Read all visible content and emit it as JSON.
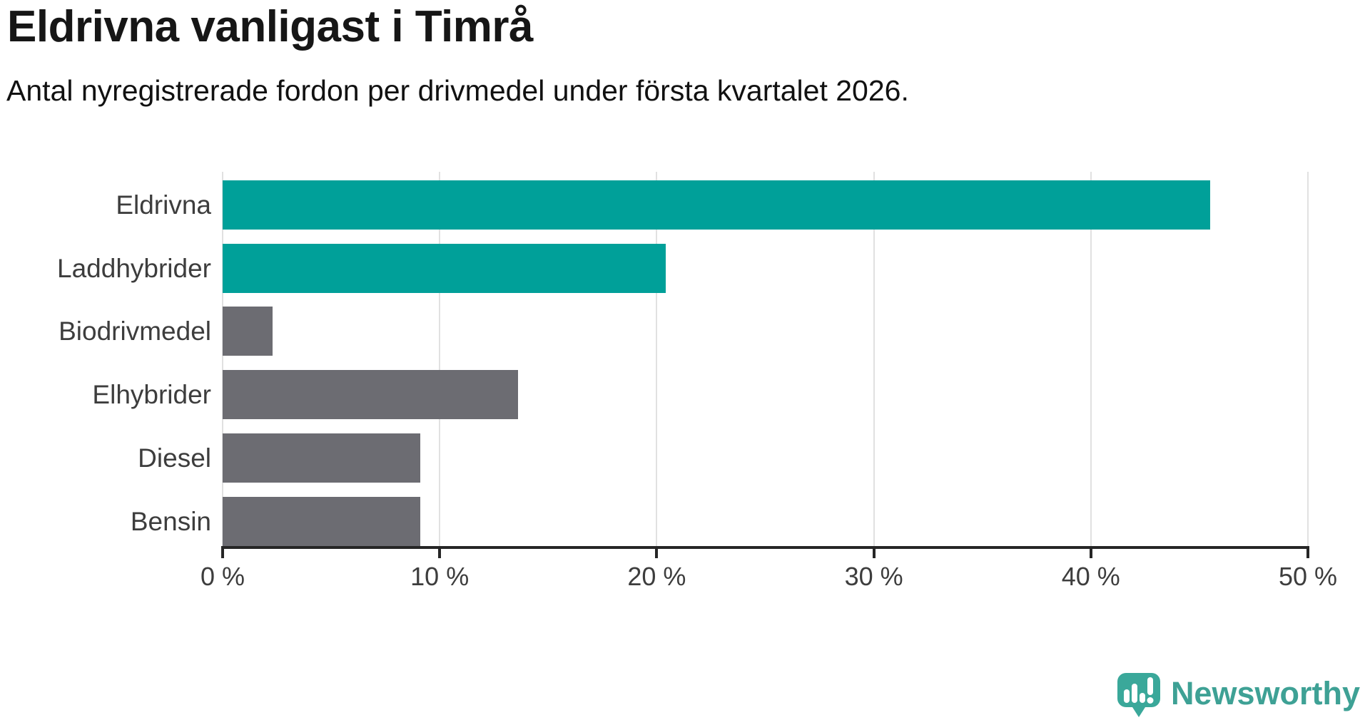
{
  "title": "Eldrivna vanligast i Timrå",
  "subtitle": "Antal nyregistrerade fordon per drivmedel under första kvartalet 2026.",
  "chart_data": {
    "type": "bar",
    "orientation": "horizontal",
    "title": "Eldrivna vanligast i Timrå",
    "subtitle": "Antal nyregistrerade fordon per drivmedel under första kvartalet 2026.",
    "categories": [
      "Eldrivna",
      "Laddhybrider",
      "Biodrivmedel",
      "Elhybrider",
      "Diesel",
      "Bensin"
    ],
    "values": [
      45.5,
      20.4,
      2.3,
      13.6,
      9.1,
      9.1
    ],
    "unit": "%",
    "highlighted": [
      true,
      true,
      false,
      false,
      false,
      false
    ],
    "xlim": [
      0,
      50
    ],
    "xtick_values": [
      0,
      10,
      20,
      30,
      40,
      50
    ],
    "xtick_labels": [
      "0 %",
      "10 %",
      "20 %",
      "30 %",
      "40 %",
      "50 %"
    ],
    "ylabel": "",
    "xlabel": "",
    "grid": "vertical-gridlines-on",
    "legend": "none",
    "colors": {
      "highlight": "#00a099",
      "muted": "#6c6c72",
      "gridline": "#e1e1e1",
      "axis": "#262626",
      "label": "#3d3d3d"
    }
  },
  "branding": {
    "label": "Newsworthy",
    "color": "#3ea195",
    "icon_color": "#3aa89a",
    "icon": "newsworthy-speech-bubble-bar-chart-icon"
  }
}
